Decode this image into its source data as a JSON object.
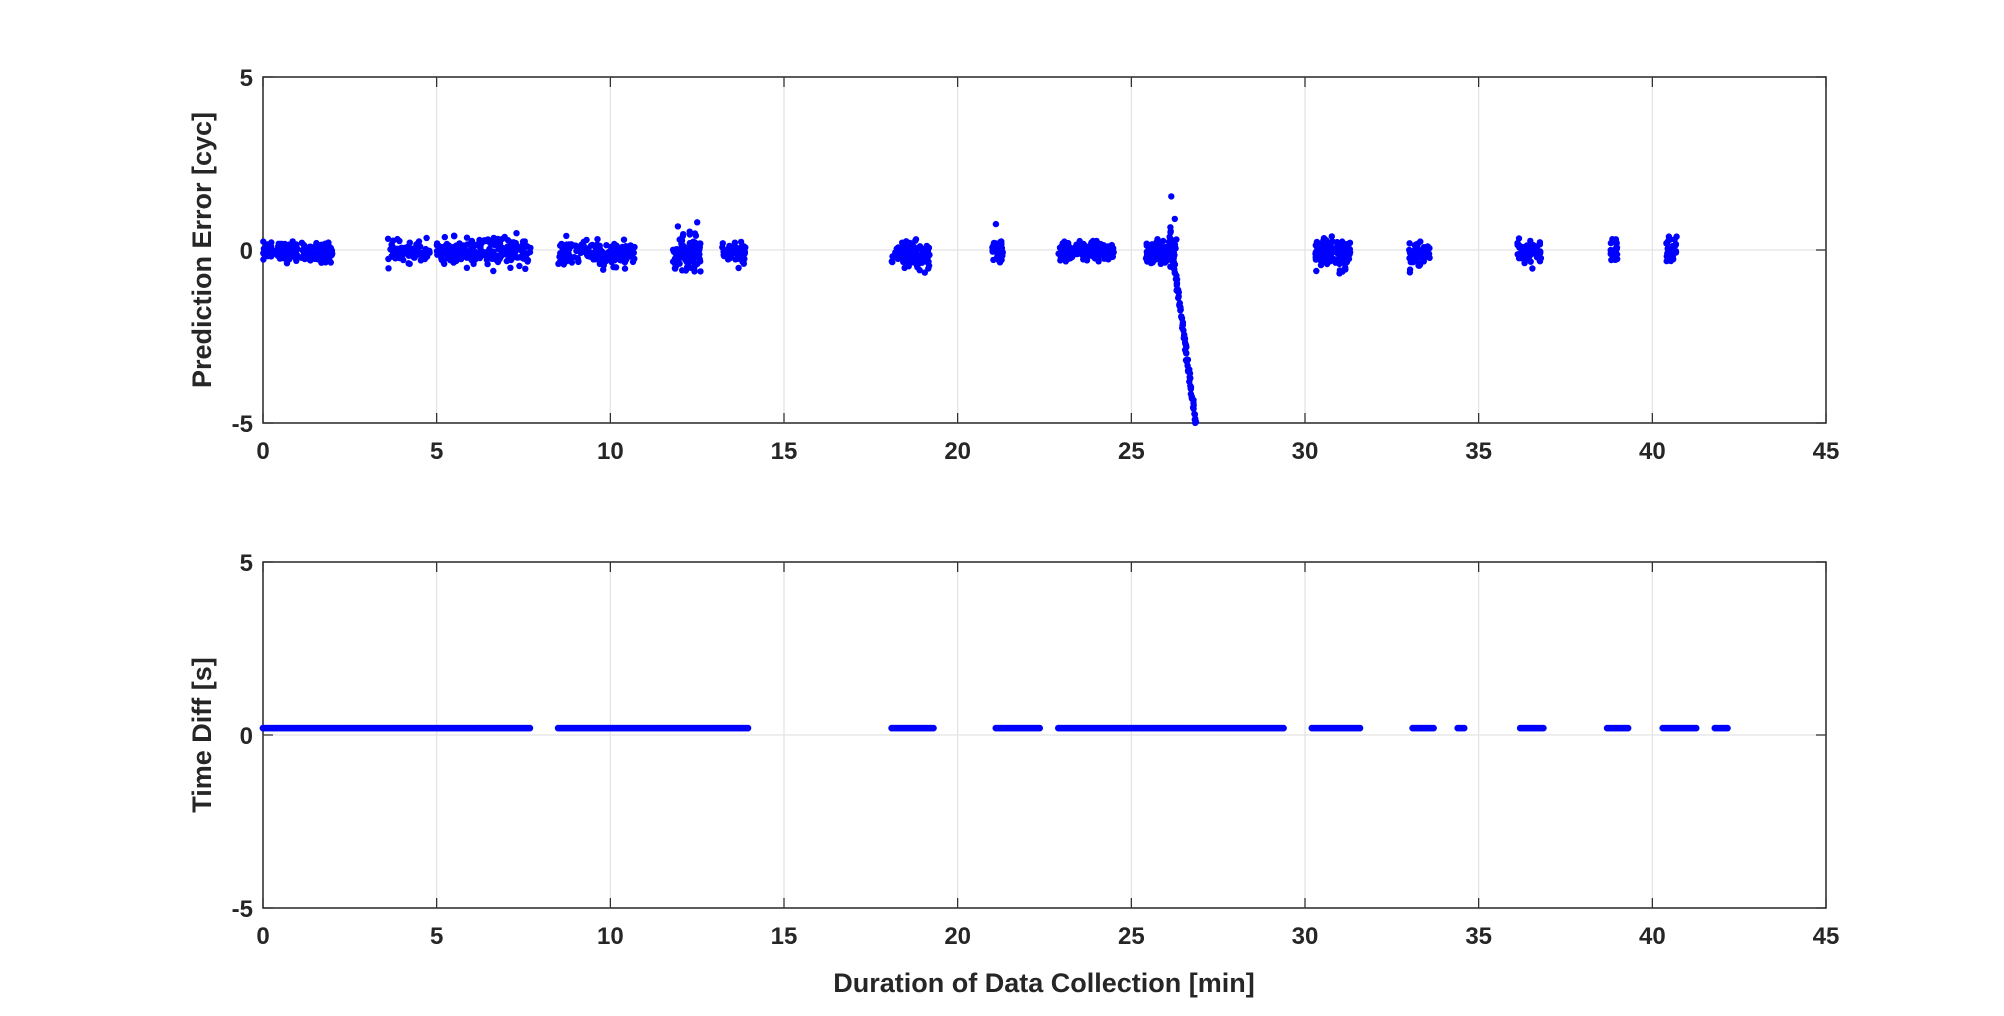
{
  "chart_data": [
    {
      "type": "scatter",
      "panel": "top",
      "title": "",
      "xlabel": "",
      "ylabel": "Prediction Error [cyc]",
      "xlim": [
        0,
        45
      ],
      "ylim": [
        -5,
        5
      ],
      "xticks": [
        "0",
        "5",
        "10",
        "15",
        "20",
        "25",
        "30",
        "35",
        "40",
        "45"
      ],
      "yticks": [
        "-5",
        "0",
        "5"
      ],
      "grid": true,
      "marker_color": "#0000ff",
      "clusters": [
        {
          "x_start": 0.0,
          "x_end": 2.0,
          "y_spread": 0.25,
          "y_offset": -0.05,
          "n": 180
        },
        {
          "x_start": 3.6,
          "x_end": 4.8,
          "y_spread": 0.25,
          "y_offset": -0.05,
          "n": 90
        },
        {
          "x_start": 5.0,
          "x_end": 7.7,
          "y_spread": 0.35,
          "y_offset": -0.05,
          "n": 240
        },
        {
          "x_start": 8.5,
          "x_end": 10.7,
          "y_spread": 0.3,
          "y_offset": -0.1,
          "n": 200
        },
        {
          "x_start": 11.8,
          "x_end": 12.6,
          "y_spread": 0.45,
          "y_offset": -0.1,
          "n": 110
        },
        {
          "x_start": 13.2,
          "x_end": 13.9,
          "y_spread": 0.3,
          "y_offset": -0.05,
          "n": 70
        },
        {
          "x_start": 18.1,
          "x_end": 19.2,
          "y_spread": 0.35,
          "y_offset": -0.15,
          "n": 110
        },
        {
          "x_start": 21.0,
          "x_end": 21.3,
          "y_spread": 0.35,
          "y_offset": -0.1,
          "n": 40
        },
        {
          "x_start": 22.9,
          "x_end": 24.5,
          "y_spread": 0.25,
          "y_offset": -0.05,
          "n": 170
        },
        {
          "x_start": 25.4,
          "x_end": 26.3,
          "y_spread": 0.3,
          "y_offset": -0.05,
          "n": 90
        },
        {
          "x_start": 30.3,
          "x_end": 31.3,
          "y_spread": 0.4,
          "y_offset": -0.1,
          "n": 110
        },
        {
          "x_start": 33.0,
          "x_end": 33.6,
          "y_spread": 0.3,
          "y_offset": -0.1,
          "n": 60
        },
        {
          "x_start": 36.1,
          "x_end": 36.8,
          "y_spread": 0.3,
          "y_offset": -0.05,
          "n": 60
        },
        {
          "x_start": 38.8,
          "x_end": 39.0,
          "y_spread": 0.35,
          "y_offset": -0.05,
          "n": 25
        },
        {
          "x_start": 40.4,
          "x_end": 40.7,
          "y_spread": 0.4,
          "y_offset": -0.05,
          "n": 35
        }
      ],
      "drift": {
        "x_start": 26.1,
        "x_end": 26.85,
        "y_start": 0.6,
        "y_end": -5.0,
        "n": 90
      },
      "outliers": [
        {
          "x": 26.15,
          "y": 1.55
        },
        {
          "x": 26.25,
          "y": 0.9
        },
        {
          "x": 21.1,
          "y": 0.75
        },
        {
          "x": 12.5,
          "y": 0.8
        }
      ]
    },
    {
      "type": "scatter",
      "panel": "bottom",
      "title": "",
      "xlabel": "Duration of Data Collection [min]",
      "ylabel": "Time Diff [s]",
      "xlim": [
        0,
        45
      ],
      "ylim": [
        -5,
        5
      ],
      "xticks": [
        "0",
        "5",
        "10",
        "15",
        "20",
        "25",
        "30",
        "35",
        "40",
        "45"
      ],
      "yticks": [
        "-5",
        "0",
        "5"
      ],
      "grid": true,
      "marker_color": "#0000ff",
      "y_value": 0.2,
      "segments": [
        [
          0.0,
          7.7
        ],
        [
          8.5,
          14.0
        ],
        [
          18.1,
          19.3
        ],
        [
          21.1,
          22.4
        ],
        [
          22.9,
          29.4
        ],
        [
          30.2,
          31.6
        ],
        [
          33.1,
          33.7
        ],
        [
          34.4,
          34.6
        ],
        [
          36.2,
          36.9
        ],
        [
          38.7,
          39.3
        ],
        [
          40.3,
          41.3
        ],
        [
          41.8,
          42.2
        ]
      ],
      "step": 0.06
    }
  ]
}
